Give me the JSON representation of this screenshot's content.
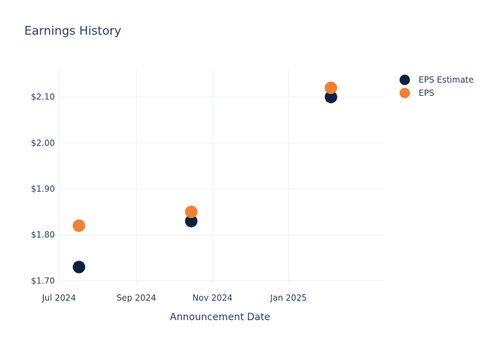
{
  "chart_data": {
    "type": "scatter",
    "title": "Earnings History",
    "xlabel": "Announcement Date",
    "ylabel": "",
    "x_ticks": [
      {
        "date": "2024-07-01",
        "label": "Jul 2024"
      },
      {
        "date": "2024-09-01",
        "label": "Sep 2024"
      },
      {
        "date": "2024-11-01",
        "label": "Nov 2024"
      },
      {
        "date": "2025-01-01",
        "label": "Jan 2025"
      }
    ],
    "y_ticks": [
      {
        "value": 1.7,
        "label": "$1.70"
      },
      {
        "value": 1.8,
        "label": "$1.80"
      },
      {
        "value": 1.9,
        "label": "$1.90"
      },
      {
        "value": 2.0,
        "label": "$2.00"
      },
      {
        "value": 2.1,
        "label": "$2.10"
      }
    ],
    "xlim": [
      "2024-07-01",
      "2025-03-19"
    ],
    "ylim": [
      1.69,
      2.16
    ],
    "grid": true,
    "legend_position": "top-right",
    "series": [
      {
        "name": "EPS Estimate",
        "color": "#0d2240",
        "points": [
          {
            "date": "2024-07-17",
            "value": 1.73
          },
          {
            "date": "2024-10-15",
            "value": 1.83
          },
          {
            "date": "2025-02-04",
            "value": 2.1
          }
        ]
      },
      {
        "name": "EPS",
        "color": "#f37f36",
        "points": [
          {
            "date": "2024-07-17",
            "value": 1.82
          },
          {
            "date": "2024-10-15",
            "value": 1.85
          },
          {
            "date": "2025-02-04",
            "value": 2.12
          }
        ]
      }
    ]
  }
}
